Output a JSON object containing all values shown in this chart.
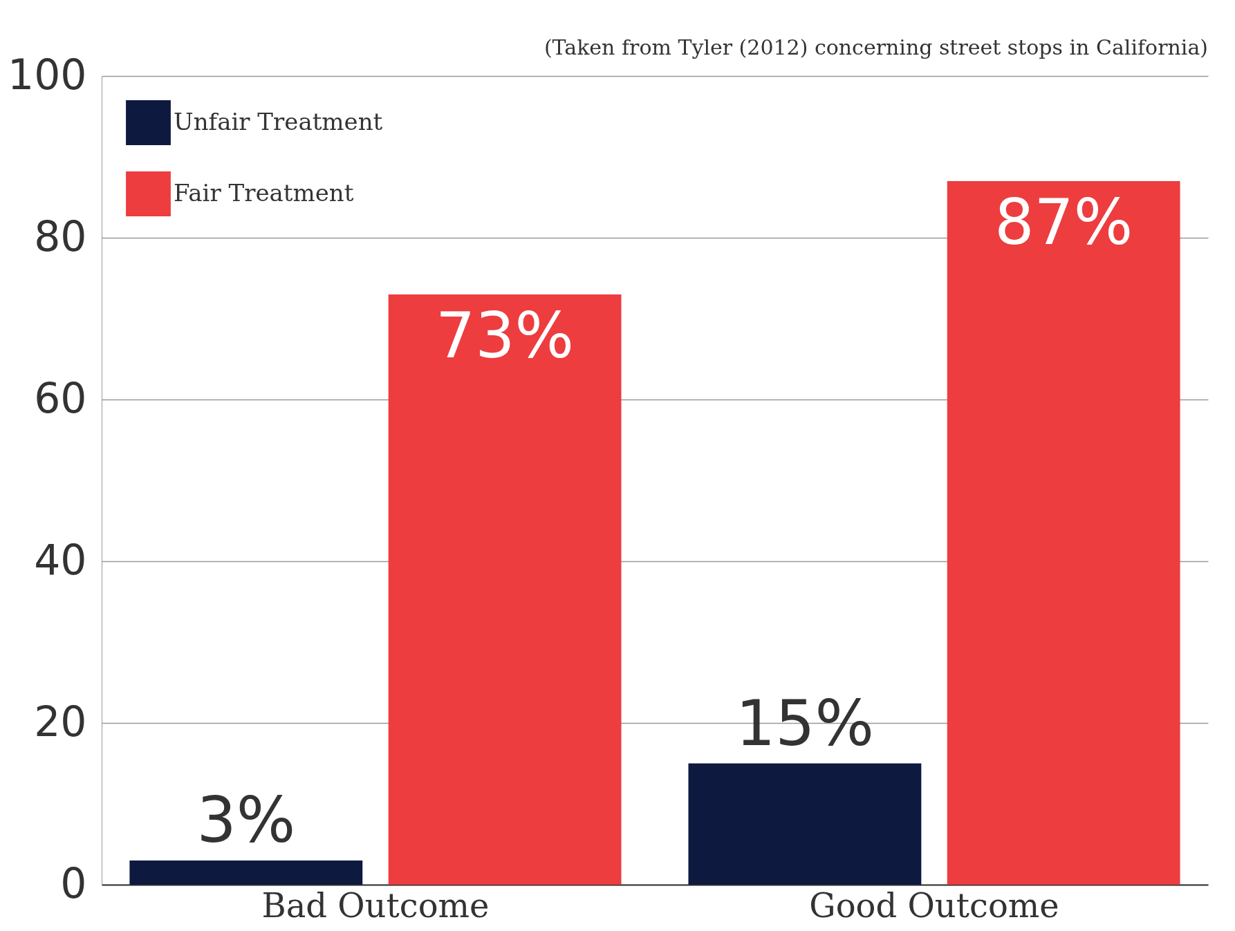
{
  "chart_data": {
    "type": "bar",
    "annotations": [
      "(Taken from Tyler (2012) concerning street stops in California)"
    ],
    "categories": [
      "Bad Outcome",
      "Good Outcome"
    ],
    "series": [
      {
        "name": "Unfair Treatment",
        "color": "#0e1940",
        "values": [
          3,
          15
        ],
        "value_labels": [
          "3%",
          "15%"
        ]
      },
      {
        "name": "Fair Treatment",
        "color": "#ed3d3f",
        "values": [
          73,
          87
        ],
        "value_labels": [
          "73%",
          "87%"
        ]
      }
    ],
    "ylim": [
      0,
      100
    ],
    "yticks": [
      0,
      20,
      40,
      60,
      80,
      100
    ],
    "grid": "y",
    "legend": "top left"
  }
}
